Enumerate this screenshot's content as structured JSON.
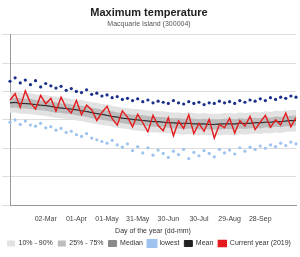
{
  "chart_data": {
    "type": "line",
    "title": "Maximum temperature",
    "subtitle": "Macquarie Island (300004)",
    "xlabel": "Day of the year (dd-mm)",
    "categories": [
      null,
      null,
      null,
      null,
      null,
      null,
      null,
      "02-Mar",
      null,
      null,
      null,
      null,
      null,
      "01-Apr",
      null,
      null,
      null,
      null,
      null,
      "01-May",
      null,
      null,
      null,
      null,
      null,
      "31-May",
      null,
      null,
      null,
      null,
      null,
      "30-Jun",
      null,
      null,
      null,
      null,
      null,
      "30-Jul",
      null,
      null,
      null,
      null,
      null,
      "29-Aug",
      null,
      null,
      null,
      null,
      null,
      "28-Sep",
      null,
      null,
      null,
      null,
      null,
      null,
      null
    ],
    "ylim": [
      -10,
      20
    ],
    "yticks": [
      -10,
      -5,
      0,
      5,
      10,
      15,
      20
    ],
    "grid": true,
    "tick_labels": "x",
    "legend": "bottom",
    "series": [
      {
        "name": "10% - 90%",
        "type": "band",
        "color": "#e2e2e2",
        "low": [
          6.2,
          6.3,
          6.1,
          6.1,
          6.0,
          5.9,
          5.8,
          5.7,
          5.5,
          5.4,
          5.3,
          5.2,
          5.1,
          4.9,
          4.8,
          4.6,
          4.4,
          4.3,
          4.1,
          4.0,
          3.8,
          3.6,
          3.5,
          3.4,
          3.2,
          3.1,
          3.0,
          2.9,
          2.8,
          2.8,
          2.7,
          2.6,
          2.5,
          2.5,
          2.4,
          2.5,
          2.4,
          2.3,
          2.4,
          2.3,
          2.3,
          2.3,
          2.4,
          2.4,
          2.3,
          2.5,
          2.4,
          2.5,
          2.6,
          2.5,
          2.7,
          2.6,
          2.8,
          2.7,
          2.9,
          2.9,
          3.0
        ],
        "high": [
          9.8,
          9.9,
          9.8,
          9.7,
          9.7,
          9.5,
          9.4,
          9.4,
          9.2,
          9.1,
          8.9,
          8.9,
          8.7,
          8.6,
          8.5,
          8.3,
          8.1,
          8.0,
          7.8,
          7.7,
          7.5,
          7.3,
          7.2,
          7.1,
          6.9,
          6.9,
          6.8,
          6.7,
          6.6,
          6.5,
          6.5,
          6.4,
          6.3,
          6.3,
          6.2,
          6.3,
          6.2,
          6.1,
          6.2,
          6.1,
          6.1,
          6.1,
          6.2,
          6.2,
          6.1,
          6.3,
          6.2,
          6.3,
          6.4,
          6.3,
          6.5,
          6.4,
          6.6,
          6.5,
          6.7,
          6.7,
          6.8
        ]
      },
      {
        "name": "25% - 75%",
        "type": "band",
        "color": "#bcbcbc",
        "low": [
          7.1,
          7.2,
          7.0,
          7.0,
          6.9,
          6.8,
          6.7,
          6.6,
          6.4,
          6.3,
          6.2,
          6.1,
          6.0,
          5.8,
          5.7,
          5.5,
          5.3,
          5.2,
          5.0,
          4.9,
          4.7,
          4.6,
          4.4,
          4.3,
          4.2,
          4.1,
          4.0,
          3.9,
          3.8,
          3.8,
          3.7,
          3.6,
          3.5,
          3.5,
          3.4,
          3.5,
          3.4,
          3.3,
          3.4,
          3.3,
          3.3,
          3.3,
          3.4,
          3.4,
          3.3,
          3.5,
          3.4,
          3.5,
          3.6,
          3.5,
          3.7,
          3.6,
          3.8,
          3.7,
          3.9,
          3.9,
          4.0
        ],
        "high": [
          8.8,
          8.9,
          8.8,
          8.7,
          8.7,
          8.5,
          8.4,
          8.4,
          8.2,
          8.1,
          7.9,
          7.9,
          7.7,
          7.6,
          7.5,
          7.3,
          7.1,
          7.0,
          6.8,
          6.7,
          6.5,
          6.3,
          6.2,
          6.1,
          5.9,
          5.9,
          5.8,
          5.7,
          5.6,
          5.5,
          5.5,
          5.4,
          5.3,
          5.3,
          5.2,
          5.3,
          5.2,
          5.1,
          5.2,
          5.1,
          5.1,
          5.1,
          5.2,
          5.2,
          5.1,
          5.3,
          5.2,
          5.3,
          5.4,
          5.3,
          5.5,
          5.4,
          5.6,
          5.5,
          5.7,
          5.7,
          5.8
        ]
      },
      {
        "name": "Median",
        "type": "line",
        "color": "#8a8a8a",
        "values": [
          7.9,
          8.0,
          7.9,
          7.8,
          7.8,
          7.6,
          7.5,
          7.5,
          7.3,
          7.2,
          7.0,
          7.0,
          6.8,
          6.7,
          6.6,
          6.4,
          6.2,
          6.1,
          5.9,
          5.8,
          5.6,
          5.4,
          5.3,
          5.2,
          5.0,
          5.0,
          4.9,
          4.8,
          4.7,
          4.6,
          4.6,
          4.5,
          4.4,
          4.4,
          4.3,
          4.4,
          4.3,
          4.2,
          4.3,
          4.2,
          4.2,
          4.2,
          4.3,
          4.3,
          4.2,
          4.4,
          4.3,
          4.4,
          4.5,
          4.4,
          4.6,
          4.5,
          4.7,
          4.6,
          4.8,
          4.8,
          4.9
        ]
      },
      {
        "name": "lowest",
        "type": "scatter",
        "marker": "circle",
        "color": "#9ec3ef",
        "values": [
          4.6,
          5.0,
          4.2,
          4.8,
          4.1,
          3.9,
          4.4,
          3.6,
          3.8,
          3.2,
          3.5,
          2.8,
          3.0,
          2.4,
          2.1,
          2.6,
          1.8,
          1.5,
          1.2,
          0.9,
          1.4,
          0.6,
          0.2,
          0.8,
          -0.4,
          0.3,
          -0.8,
          0.1,
          -1.2,
          -0.3,
          -0.9,
          -1.6,
          -0.5,
          -1.1,
          -0.2,
          -1.8,
          -0.7,
          -1.3,
          -0.4,
          -0.9,
          -1.5,
          -0.2,
          -0.8,
          -0.3,
          -1.0,
          0.1,
          -0.5,
          0.2,
          -0.2,
          0.4,
          0.0,
          0.6,
          0.3,
          0.9,
          0.5,
          1.1,
          0.8
        ]
      },
      {
        "name": "Mean",
        "type": "line",
        "color": "#222222",
        "values": [
          8.0,
          8.1,
          7.9,
          7.9,
          7.8,
          7.7,
          7.6,
          7.5,
          7.4,
          7.2,
          7.1,
          7.0,
          6.9,
          6.8,
          6.6,
          6.5,
          6.3,
          6.1,
          6.0,
          5.8,
          5.6,
          5.5,
          5.3,
          5.2,
          5.1,
          5.0,
          4.9,
          4.8,
          4.7,
          4.7,
          4.6,
          4.5,
          4.5,
          4.4,
          4.4,
          4.4,
          4.3,
          4.3,
          4.3,
          4.2,
          4.2,
          4.3,
          4.3,
          4.3,
          4.3,
          4.4,
          4.4,
          4.4,
          4.5,
          4.5,
          4.6,
          4.6,
          4.7,
          4.7,
          4.8,
          4.9,
          4.9
        ]
      },
      {
        "type": "scatter",
        "marker": "circle",
        "color": "#1a2f8a",
        "values": [
          11.8,
          12.4,
          11.5,
          12.0,
          11.2,
          11.9,
          10.8,
          11.4,
          11.0,
          10.6,
          10.9,
          10.2,
          10.5,
          10.0,
          9.8,
          10.3,
          9.5,
          9.7,
          9.2,
          9.4,
          8.9,
          9.1,
          8.6,
          8.8,
          8.4,
          8.7,
          8.2,
          8.5,
          8.0,
          8.3,
          8.1,
          7.9,
          8.4,
          8.0,
          7.8,
          8.2,
          7.9,
          8.1,
          7.7,
          8.0,
          7.9,
          8.3,
          8.0,
          8.2,
          7.9,
          8.4,
          8.1,
          8.5,
          8.3,
          8.7,
          8.4,
          8.9,
          8.6,
          9.0,
          8.8,
          9.2,
          9.0
        ]
      },
      {
        "name": "Current year (2019)",
        "type": "line",
        "color": "#e41a1c",
        "values": [
          8.5,
          9.6,
          7.2,
          10.1,
          8.0,
          6.9,
          9.3,
          7.8,
          8.8,
          6.5,
          9.0,
          7.1,
          6.2,
          8.4,
          5.9,
          7.6,
          6.8,
          4.9,
          6.3,
          7.4,
          5.2,
          4.1,
          6.6,
          5.5,
          3.8,
          6.0,
          4.5,
          2.9,
          5.8,
          4.0,
          3.1,
          5.4,
          2.2,
          4.8,
          3.5,
          5.9,
          2.6,
          4.4,
          3.0,
          5.1,
          1.8,
          4.2,
          3.6,
          5.3,
          2.7,
          4.9,
          3.9,
          5.6,
          3.3,
          4.6,
          5.8,
          3.7,
          5.0,
          4.1,
          6.2,
          3.8,
          5.4
        ]
      }
    ]
  }
}
